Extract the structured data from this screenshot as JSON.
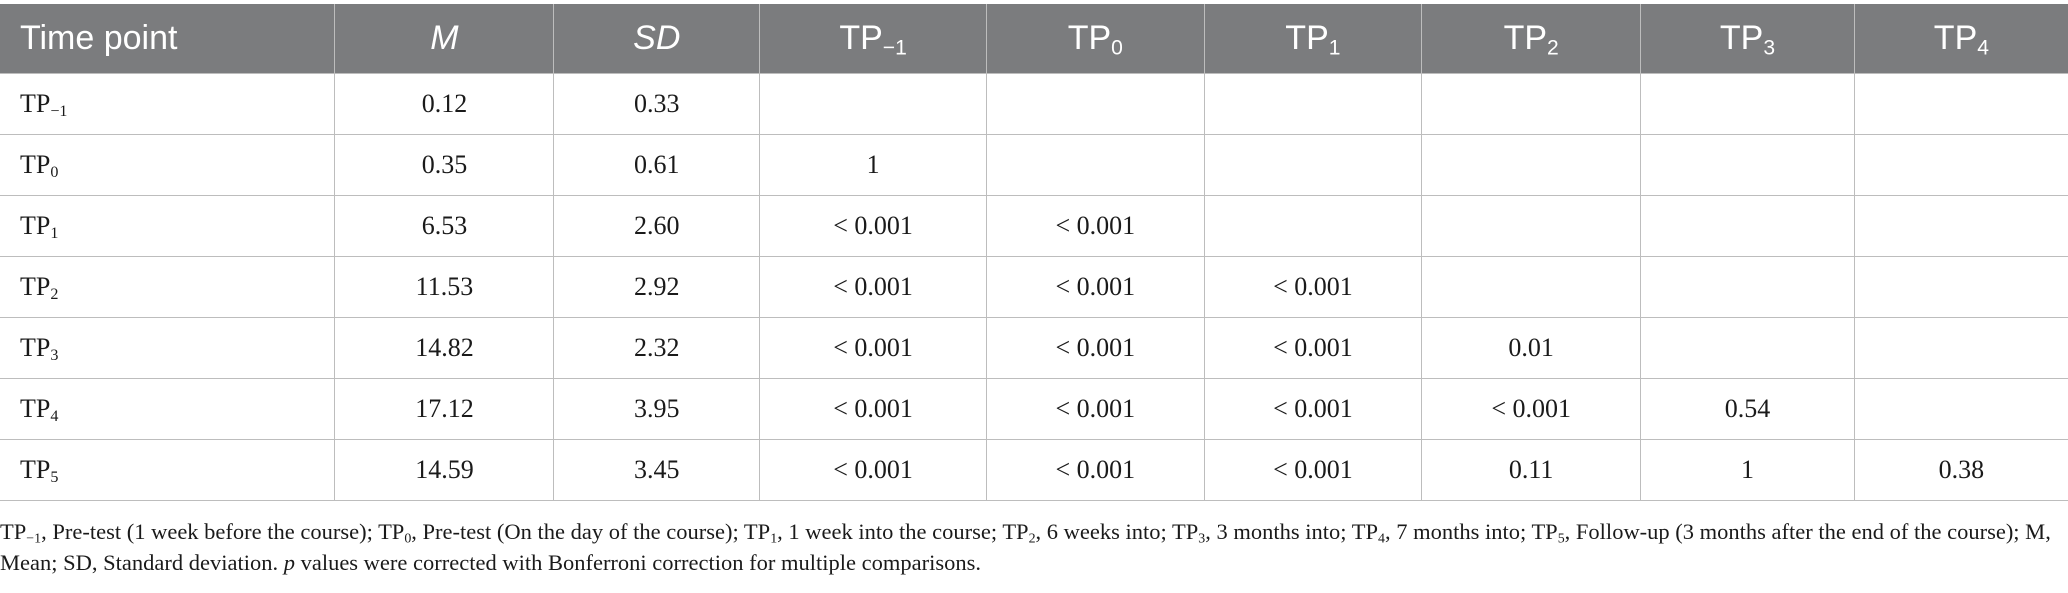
{
  "table": {
    "header": {
      "time_point": "Time point",
      "m": "M",
      "sd": "SD",
      "cols": [
        {
          "base": "TP",
          "sub": "−1"
        },
        {
          "base": "TP",
          "sub": "0"
        },
        {
          "base": "TP",
          "sub": "1"
        },
        {
          "base": "TP",
          "sub": "2"
        },
        {
          "base": "TP",
          "sub": "3"
        },
        {
          "base": "TP",
          "sub": "4"
        }
      ]
    },
    "rows": [
      {
        "base": "TP",
        "sub": "−1",
        "m": "0.12",
        "sd": "0.33",
        "p": [
          "",
          "",
          "",
          "",
          "",
          ""
        ]
      },
      {
        "base": "TP",
        "sub": "0",
        "m": "0.35",
        "sd": "0.61",
        "p": [
          "1",
          "",
          "",
          "",
          "",
          ""
        ]
      },
      {
        "base": "TP",
        "sub": "1",
        "m": "6.53",
        "sd": "2.60",
        "p": [
          "< 0.001",
          "< 0.001",
          "",
          "",
          "",
          ""
        ]
      },
      {
        "base": "TP",
        "sub": "2",
        "m": "11.53",
        "sd": "2.92",
        "p": [
          "< 0.001",
          "< 0.001",
          "< 0.001",
          "",
          "",
          ""
        ]
      },
      {
        "base": "TP",
        "sub": "3",
        "m": "14.82",
        "sd": "2.32",
        "p": [
          "< 0.001",
          "< 0.001",
          "< 0.001",
          "0.01",
          "",
          ""
        ]
      },
      {
        "base": "TP",
        "sub": "4",
        "m": "17.12",
        "sd": "3.95",
        "p": [
          "< 0.001",
          "< 0.001",
          "< 0.001",
          "< 0.001",
          "0.54",
          ""
        ]
      },
      {
        "base": "TP",
        "sub": "5",
        "m": "14.59",
        "sd": "3.45",
        "p": [
          "< 0.001",
          "< 0.001",
          "< 0.001",
          "0.11",
          "1",
          "0.38"
        ]
      }
    ]
  },
  "footnote": {
    "defs": [
      {
        "base": "TP",
        "sub": "−1",
        "text": ", Pre-test (1 week before the course); "
      },
      {
        "base": "TP",
        "sub": "0",
        "text": ", Pre-test (On the day of the course); "
      },
      {
        "base": "TP",
        "sub": "1",
        "text": ", 1 week into the course; "
      },
      {
        "base": "TP",
        "sub": "2",
        "text": ", 6 weeks into; "
      },
      {
        "base": "TP",
        "sub": "3",
        "text": ", 3 months into; "
      },
      {
        "base": "TP",
        "sub": "4",
        "text": ", 7 months into; "
      },
      {
        "base": "TP",
        "sub": "5",
        "text": ", Follow-up (3 months after the end of the course); M, Mean; SD, Standard deviation. "
      }
    ],
    "p_symbol": "p",
    "tail": " values were corrected with Bonferroni correction for multiple comparisons."
  }
}
